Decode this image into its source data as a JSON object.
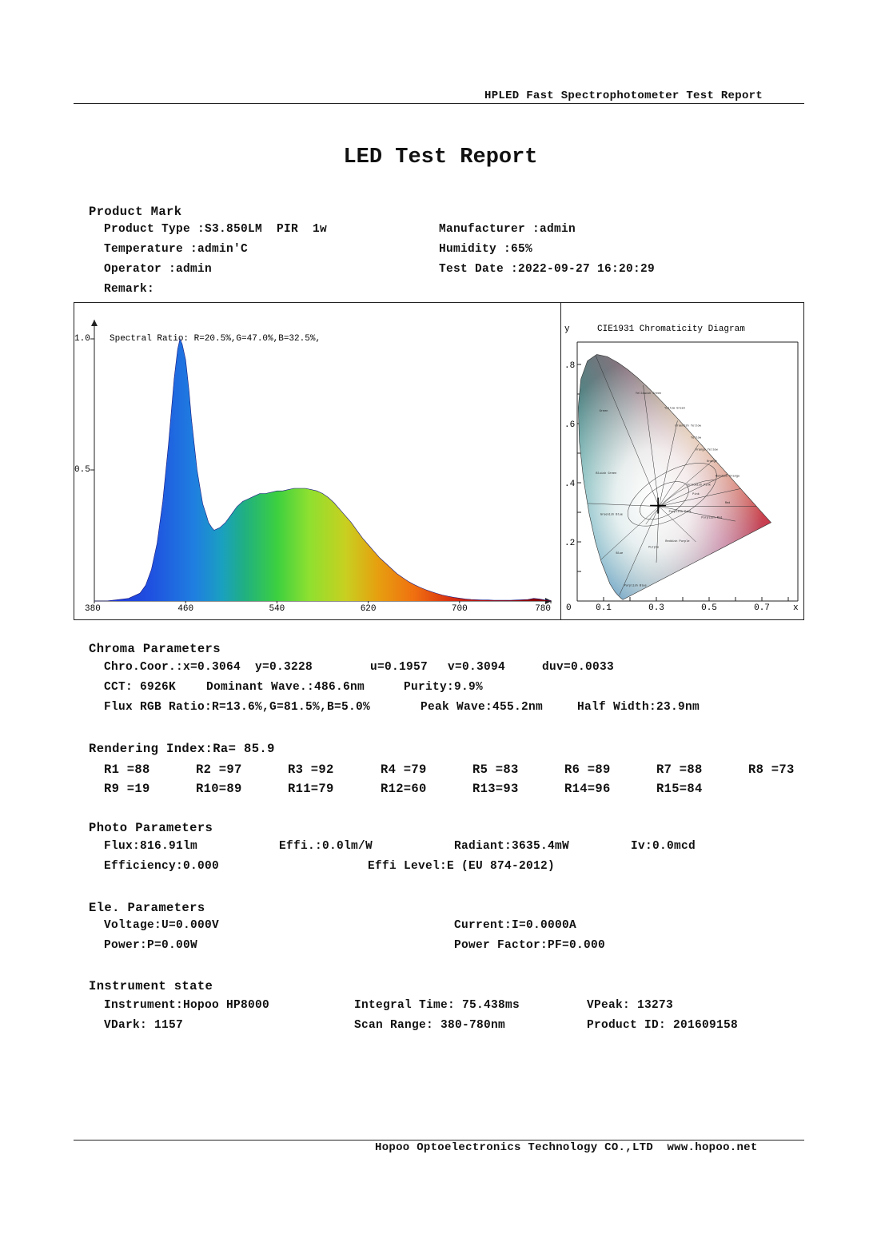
{
  "header": {
    "title": "HPLED Fast Spectrophotometer Test Report"
  },
  "report_title": "LED Test Report",
  "product_mark": {
    "heading": "Product Mark",
    "product_type": "Product Type :S3.850LM  PIR  1w",
    "manufacturer": "Manufacturer :admin",
    "temperature": "Temperature :admin'C",
    "humidity": "Humidity :65%",
    "operator": "Operator :admin",
    "test_date": "Test Date :2022-09-27 16:20:29",
    "remark": "Remark:"
  },
  "chart_data": [
    {
      "type": "area",
      "subtitle": "Spectral Ratio:  R=20.5%,G=47.0%,B=32.5%,",
      "x_ticks": [
        "380",
        "460",
        "540",
        "620",
        "700",
        "780"
      ],
      "y_ticks": [
        "1.0",
        "0.5"
      ],
      "xlim": [
        380,
        780
      ],
      "ylim": [
        0,
        1.0
      ],
      "x": [
        380,
        390,
        400,
        410,
        420,
        425,
        430,
        435,
        440,
        445,
        450,
        453,
        455,
        457,
        460,
        463,
        465,
        468,
        470,
        473,
        475,
        478,
        480,
        483,
        485,
        490,
        495,
        500,
        505,
        510,
        515,
        520,
        525,
        530,
        535,
        540,
        545,
        550,
        555,
        560,
        565,
        570,
        575,
        580,
        585,
        590,
        595,
        600,
        605,
        610,
        615,
        620,
        625,
        630,
        635,
        640,
        645,
        650,
        655,
        660,
        665,
        670,
        675,
        680,
        685,
        690,
        695,
        700,
        705,
        710,
        715,
        720,
        725,
        730,
        735,
        740,
        745,
        750,
        755,
        760,
        765,
        770,
        775,
        780
      ],
      "values": [
        0,
        0,
        0.005,
        0.01,
        0.03,
        0.06,
        0.12,
        0.22,
        0.38,
        0.6,
        0.85,
        0.96,
        1.0,
        0.98,
        0.92,
        0.8,
        0.7,
        0.58,
        0.5,
        0.42,
        0.37,
        0.33,
        0.3,
        0.28,
        0.27,
        0.28,
        0.3,
        0.33,
        0.36,
        0.38,
        0.39,
        0.4,
        0.41,
        0.41,
        0.415,
        0.42,
        0.42,
        0.425,
        0.43,
        0.43,
        0.43,
        0.425,
        0.42,
        0.41,
        0.395,
        0.375,
        0.35,
        0.325,
        0.3,
        0.27,
        0.24,
        0.215,
        0.19,
        0.165,
        0.145,
        0.125,
        0.105,
        0.09,
        0.075,
        0.063,
        0.053,
        0.044,
        0.036,
        0.029,
        0.023,
        0.018,
        0.014,
        0.011,
        0.008,
        0.006,
        0.005,
        0.004,
        0.004,
        0.003,
        0.003,
        0.003,
        0.003,
        0.004,
        0.005,
        0.006,
        0.01,
        0.008,
        0.004,
        0.002
      ]
    },
    {
      "type": "scatter",
      "title": "CIE1931 Chromaticity Diagram",
      "xlabel": "x",
      "ylabel": "y",
      "x_ticks": [
        "0",
        "0.1",
        "0.3",
        "0.5",
        "0.7"
      ],
      "y_ticks": [
        ".8",
        ".6",
        ".4",
        ".2"
      ],
      "xlim": [
        0,
        0.8
      ],
      "ylim": [
        0,
        0.9
      ],
      "point": {
        "x": 0.3064,
        "y": 0.3228
      },
      "region_labels": [
        "Yellowish Green",
        "Green",
        "Yellow Green",
        "Greenish Yellow",
        "Yellow",
        "Orange Yellow",
        "Orange",
        "Reddish Orange",
        "Bluish Green",
        "Yellowish Pink",
        "Pink",
        "Red",
        "Greenish Blue",
        "Purplish Pink",
        "Purplish Red",
        "Blue",
        "Purple",
        "Reddish Purple",
        "Purplish Blue"
      ]
    }
  ],
  "chroma": {
    "heading": "Chroma Parameters",
    "coor": "Chro.Coor.:x=0.3064  y=0.3228",
    "u": "u=0.1957",
    "v": "v=0.3094",
    "duv": "duv=0.0033",
    "cct": "CCT: 6926K",
    "dominant": "Dominant Wave.:486.6nm",
    "purity": "Purity:9.9%",
    "flux_rgb": "Flux RGB Ratio:R=13.6%,G=81.5%,B=5.0%",
    "peak": "Peak Wave:455.2nm",
    "half_width": "Half Width:23.9nm"
  },
  "rendering": {
    "heading": "Rendering Index:Ra= 85.9",
    "row1": [
      "R1 =88",
      "R2 =97",
      "R3 =92",
      "R4 =79",
      "R5 =83",
      "R6 =89",
      "R7 =88",
      "R8 =73"
    ],
    "row2": [
      "R9 =19",
      "R10=89",
      "R11=79",
      "R12=60",
      "R13=93",
      "R14=96",
      "R15=84"
    ]
  },
  "photo": {
    "heading": "Photo Parameters",
    "flux": "Flux:816.91lm",
    "effi": "Effi.:0.0lm/W",
    "radiant": "Radiant:3635.4mW",
    "iv": "Iv:0.0mcd",
    "efficiency": "Efficiency:0.000",
    "effi_level": "Effi Level:E (EU 874-2012)"
  },
  "ele": {
    "heading": "Ele. Parameters",
    "voltage": "Voltage:U=0.000V",
    "current": "Current:I=0.0000A",
    "power": "Power:P=0.00W",
    "pf": "Power Factor:PF=0.000"
  },
  "instrument": {
    "heading": "Instrument state",
    "instrument": "Instrument:Hopoo HP8000",
    "integral": "Integral Time: 75.438ms",
    "vpeak": "VPeak: 13273",
    "vdark": "VDark: 1157",
    "scan": "Scan Range: 380-780nm",
    "product_id": "Product ID: 201609158"
  },
  "footer": {
    "text": "Hopoo Optoelectronics Technology CO.,LTD  www.hopoo.net"
  }
}
